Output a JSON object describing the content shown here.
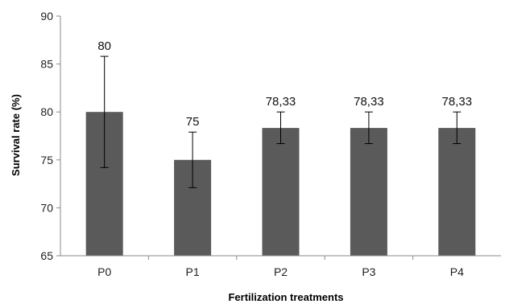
{
  "chart_data": {
    "type": "bar",
    "title": "",
    "xlabel": "Fertilization treatments",
    "ylabel": "Survival rate (%)",
    "categories": [
      "P0",
      "P1",
      "P2",
      "P3",
      "P4"
    ],
    "values": [
      80,
      75,
      78.33,
      78.33,
      78.33
    ],
    "data_labels": [
      "80",
      "75",
      "78,33",
      "78,33",
      "78,33"
    ],
    "error": {
      "upper": [
        85.8,
        77.9,
        80.0,
        80.0,
        80.0
      ],
      "lower": [
        74.2,
        72.1,
        76.7,
        76.7,
        76.7
      ]
    },
    "ylim": [
      65,
      90
    ],
    "yticks": [
      "65",
      "70",
      "75",
      "80",
      "85",
      "90"
    ],
    "grid": false,
    "legend": "none",
    "bar_color": "#5a5a5a",
    "axis_color": "#8a8a8a"
  }
}
